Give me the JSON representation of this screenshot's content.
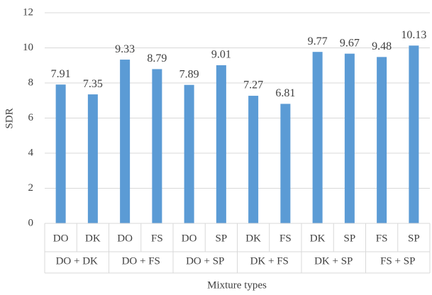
{
  "chart_data": {
    "type": "bar",
    "ylabel": "SDR",
    "xlabel": "Mixture types",
    "categories": [
      "DO",
      "DK",
      "DO",
      "FS",
      "DO",
      "SP",
      "DK",
      "FS",
      "DK",
      "SP",
      "FS",
      "SP"
    ],
    "groups": [
      "DO + DK",
      "DO + FS",
      "DO + SP",
      "DK + FS",
      "DK + SP",
      "FS + SP"
    ],
    "values": [
      7.91,
      7.35,
      9.33,
      8.79,
      7.89,
      9.01,
      7.27,
      6.81,
      9.77,
      9.67,
      9.48,
      10.13
    ],
    "color": "#5b9bd5",
    "ylim": [
      0,
      12
    ],
    "yticks": [
      0,
      2,
      4,
      6,
      8,
      10,
      12
    ],
    "grid": true
  }
}
